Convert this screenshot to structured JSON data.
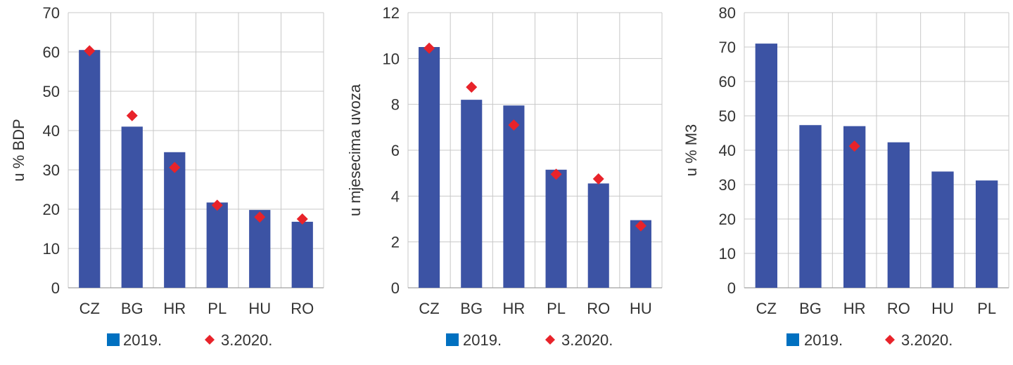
{
  "chart_data": [
    {
      "type": "bar",
      "title": "",
      "xlabel": "",
      "ylabel": "u % BDP",
      "ylim": [
        0,
        70
      ],
      "yticks": [
        0,
        10,
        20,
        30,
        40,
        50,
        60,
        70
      ],
      "grid": true,
      "legend_placement": "bottom",
      "categories": [
        "CZ",
        "BG",
        "HR",
        "PL",
        "HU",
        "RO"
      ],
      "series": [
        {
          "name": "2019.",
          "kind": "bar",
          "color": "#3c53a4",
          "legend_color": "#0070c0",
          "values": [
            60.5,
            41,
            34.5,
            21.7,
            19.8,
            16.8
          ]
        },
        {
          "name": "3.2020.",
          "kind": "marker",
          "color": "#e8232a",
          "values": [
            60.3,
            43.8,
            30.6,
            21,
            18,
            17.5
          ]
        }
      ]
    },
    {
      "type": "bar",
      "title": "",
      "xlabel": "",
      "ylabel": "u mjesecima uvoza",
      "ylim": [
        0,
        12
      ],
      "yticks": [
        0,
        2,
        4,
        6,
        8,
        10,
        12
      ],
      "grid": true,
      "legend_placement": "bottom",
      "categories": [
        "CZ",
        "BG",
        "HR",
        "PL",
        "RO",
        "HU"
      ],
      "series": [
        {
          "name": "2019.",
          "kind": "bar",
          "color": "#3c53a4",
          "legend_color": "#0070c0",
          "values": [
            10.5,
            8.2,
            7.95,
            5.15,
            4.55,
            2.95
          ]
        },
        {
          "name": "3.2020.",
          "kind": "marker",
          "color": "#e8232a",
          "values": [
            10.45,
            8.75,
            7.1,
            4.95,
            4.75,
            2.7
          ]
        }
      ]
    },
    {
      "type": "bar",
      "title": "",
      "xlabel": "",
      "ylabel": "u % M3",
      "ylim": [
        0,
        80
      ],
      "yticks": [
        0,
        10,
        20,
        30,
        40,
        50,
        60,
        70,
        80
      ],
      "grid": true,
      "legend_placement": "bottom",
      "categories": [
        "CZ",
        "BG",
        "HR",
        "RO",
        "HU",
        "PL"
      ],
      "series": [
        {
          "name": "2019.",
          "kind": "bar",
          "color": "#3c53a4",
          "legend_color": "#0070c0",
          "values": [
            71,
            47.3,
            47,
            42.3,
            33.8,
            31.2
          ]
        },
        {
          "name": "3.2020.",
          "kind": "marker",
          "color": "#e8232a",
          "values": [
            null,
            null,
            41.2,
            null,
            null,
            null
          ]
        }
      ]
    }
  ]
}
